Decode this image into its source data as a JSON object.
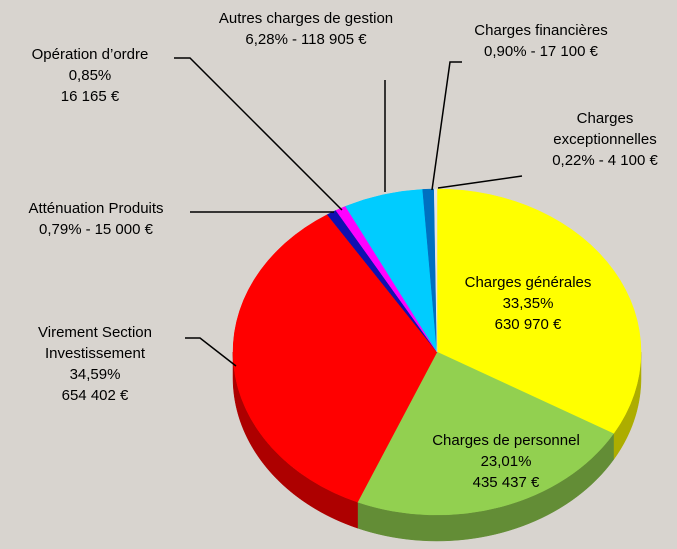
{
  "chart_data": {
    "type": "pie",
    "categories": [
      "Charges générales",
      "Charges de personnel",
      "Virement Section Investissement",
      "Atténuation Produits",
      "Opération d’ordre",
      "Autres charges de gestion",
      "Charges financières",
      "Charges exceptionnelles"
    ],
    "values": [
      33.35,
      23.01,
      34.59,
      0.79,
      0.85,
      6.28,
      0.9,
      0.22
    ],
    "value_labels": [
      "33,35%",
      "23,01%",
      "34,59%",
      "0,79%",
      "0,85%",
      "6,28%",
      "0,90%",
      "0,22%"
    ],
    "amounts": [
      630970,
      435437,
      654402,
      15000,
      16165,
      118905,
      17100,
      4100
    ],
    "amount_labels": [
      "630 970 €",
      "435 437 €",
      "654 402 €",
      "15 000 €",
      "16 165 €",
      "118 905 €",
      "17 100 €",
      "4 100 €"
    ],
    "separator": "-",
    "colors": [
      "#ffff00",
      "#92d050",
      "#ff0000",
      "#1010b0",
      "#ff00ff",
      "#00ccff",
      "#0070c0",
      "#e6e6e6"
    ]
  }
}
